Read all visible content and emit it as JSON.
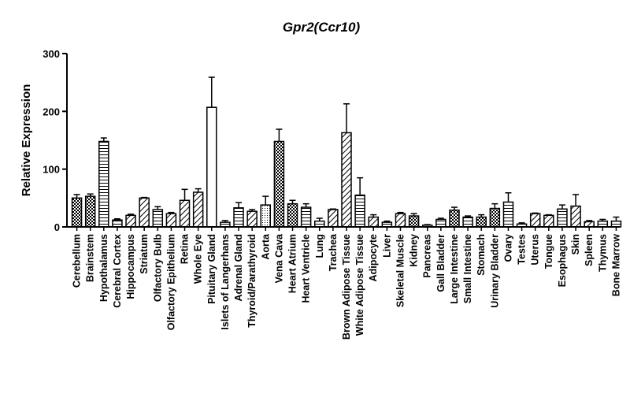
{
  "chart_data": {
    "type": "bar",
    "title": "Gpr2(Ccr10)",
    "xlabel": "",
    "ylabel": "Relative Expression",
    "ylim": [
      0,
      300
    ],
    "yticks": [
      0,
      100,
      200,
      300
    ],
    "grid": false,
    "legend": "none",
    "error_bars": true,
    "categories": [
      "Cerebellum",
      "Brainstem",
      "Hypothalamus",
      "Cerebral Cortex",
      "Hippocampus",
      "Striatum",
      "Olfactory Bulb",
      "Olfactory Epithelium",
      "Retina",
      "Whole Eye",
      "Pituitary Gland",
      "Islets of Langerhans",
      "Adrenal Gland",
      "Thyroid/Parathyroid",
      "Aorta",
      "Vena Cava",
      "Heart Atrium",
      "Heart Ventricle",
      "Lung",
      "Trachea",
      "Brown Adipose Tissue",
      "White Adipose Tissue",
      "Adipocyte",
      "Liver",
      "Skeletal Muscle",
      "Kidney",
      "Pancreas",
      "Gall Bladder",
      "Large Intestine",
      "Small Intestine",
      "Stomach",
      "Urinary Bladder",
      "Ovary",
      "Testes",
      "Uterus",
      "Tongue",
      "Esophagus",
      "Skin",
      "Spleen",
      "Thymus",
      "Bone Marrow"
    ],
    "values": [
      50,
      53,
      148,
      12,
      20,
      50,
      30,
      23,
      46,
      60,
      207,
      8,
      33,
      27,
      38,
      148,
      40,
      34,
      10,
      30,
      163,
      55,
      17,
      8,
      23,
      19,
      3,
      13,
      29,
      17,
      17,
      32,
      43,
      5,
      23,
      20,
      31,
      36,
      9,
      10,
      10
    ],
    "errors": [
      6,
      4,
      6,
      2,
      2,
      1,
      5,
      2,
      19,
      6,
      52,
      3,
      9,
      3,
      15,
      21,
      6,
      6,
      5,
      1,
      50,
      30,
      4,
      2,
      2,
      4,
      1,
      2,
      5,
      2,
      4,
      8,
      16,
      2,
      1,
      1,
      7,
      20,
      2,
      3,
      7
    ],
    "patterns": [
      "check",
      "check",
      "hstripe",
      "hstripe",
      "diag",
      "diag",
      "hstripe",
      "diag",
      "diag",
      "diag",
      "white",
      "hstripe",
      "hstripe",
      "diag",
      "dots",
      "check",
      "check",
      "hstripe",
      "hstripe",
      "diag",
      "diag",
      "hstripe",
      "diag",
      "hstripe",
      "diag",
      "check",
      "white",
      "hstripe",
      "check",
      "hstripe",
      "check",
      "check",
      "hstripe",
      "hstripe",
      "diag",
      "diag",
      "hstripe",
      "diag",
      "diag",
      "hstripe",
      "hstripe"
    ]
  }
}
